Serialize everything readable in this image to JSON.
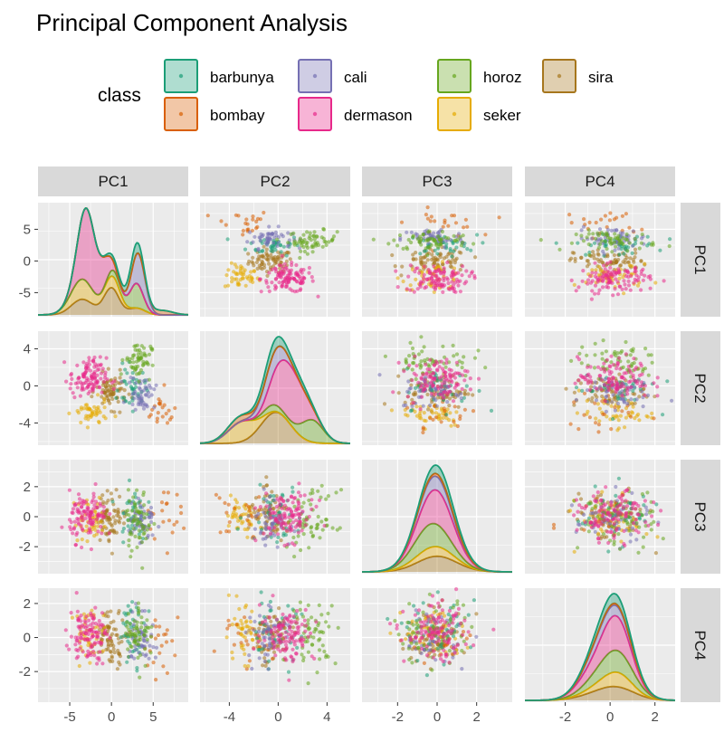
{
  "title": "Principal Component Analysis",
  "legend": {
    "title": "class",
    "items": [
      {
        "label": "barbunya",
        "color": "#1B9E77"
      },
      {
        "label": "bombay",
        "color": "#D95F02"
      },
      {
        "label": "cali",
        "color": "#7570B3"
      },
      {
        "label": "dermason",
        "color": "#E7298A"
      },
      {
        "label": "horoz",
        "color": "#66A61E"
      },
      {
        "label": "seker",
        "color": "#E6AB02"
      },
      {
        "label": "sira",
        "color": "#A6761D"
      }
    ]
  },
  "chart_data": {
    "type": "scatter",
    "layout": "scatterplot-matrix",
    "variables": [
      "PC1",
      "PC2",
      "PC3",
      "PC4"
    ],
    "diagonal": "stacked-density",
    "axes": {
      "PC1": {
        "range": [
          -8.8,
          9.2
        ],
        "ticks": [
          -5,
          0,
          5
        ]
      },
      "PC2": {
        "range": [
          -6.4,
          5.9
        ],
        "ticks": [
          -4,
          0,
          4
        ]
      },
      "PC3": {
        "range": [
          -3.8,
          3.8
        ],
        "ticks": [
          -2,
          0,
          2
        ]
      },
      "PC4": {
        "range": [
          -3.8,
          2.9
        ],
        "ticks": [
          -2,
          0,
          2
        ]
      }
    },
    "series": [
      {
        "name": "barbunya",
        "centroid": {
          "PC1": 2.5,
          "PC2": -0.3,
          "PC3": 0.2,
          "PC4": 0.3
        }
      },
      {
        "name": "bombay",
        "centroid": {
          "PC1": 6.0,
          "PC2": -3.0,
          "PC3": 0.3,
          "PC4": -0.3
        }
      },
      {
        "name": "cali",
        "centroid": {
          "PC1": 3.6,
          "PC2": -0.7,
          "PC3": -0.2,
          "PC4": 0.1
        }
      },
      {
        "name": "dermason",
        "centroid": {
          "PC1": -2.8,
          "PC2": 0.8,
          "PC3": 0.0,
          "PC4": 0.2
        }
      },
      {
        "name": "horoz",
        "centroid": {
          "PC1": 3.2,
          "PC2": 2.8,
          "PC3": -0.3,
          "PC4": 0.3
        }
      },
      {
        "name": "seker",
        "centroid": {
          "PC1": -2.5,
          "PC2": -3.0,
          "PC3": -0.2,
          "PC4": 0.2
        }
      },
      {
        "name": "sira",
        "centroid": {
          "PC1": 0.0,
          "PC2": -0.6,
          "PC3": 0.0,
          "PC4": 0.0
        }
      }
    ],
    "grid": true,
    "legend_position": "top"
  }
}
